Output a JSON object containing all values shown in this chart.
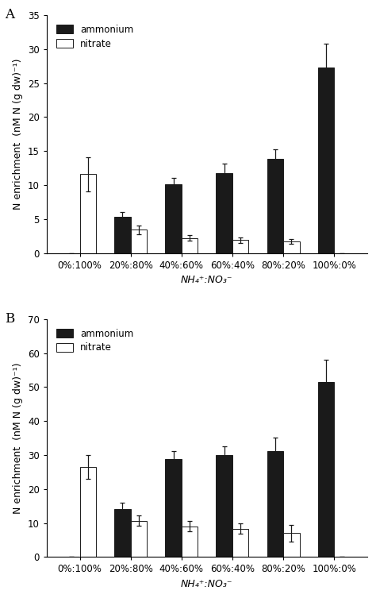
{
  "panel_A": {
    "label": "A",
    "categories": [
      "0%:100%",
      "20%:80%",
      "40%:60%",
      "60%:40%",
      "80%:20%",
      "100%:0%"
    ],
    "ammonium_values": [
      0.0,
      5.3,
      10.1,
      11.7,
      13.8,
      27.3
    ],
    "ammonium_errors": [
      0.0,
      0.7,
      1.0,
      1.5,
      1.5,
      3.5
    ],
    "nitrate_values": [
      11.6,
      3.4,
      2.2,
      1.9,
      1.7,
      0.0
    ],
    "nitrate_errors": [
      2.5,
      0.6,
      0.4,
      0.4,
      0.3,
      0.0
    ],
    "ylim": [
      0,
      35
    ],
    "yticks": [
      0,
      5,
      10,
      15,
      20,
      25,
      30,
      35
    ],
    "ylabel": "N enrichment  (nM N (g dw)⁻¹)"
  },
  "panel_B": {
    "label": "B",
    "categories": [
      "0%:100%",
      "20%:80%",
      "40%:60%",
      "60%:40%",
      "80%:20%",
      "100%:0%"
    ],
    "ammonium_values": [
      0.0,
      14.2,
      28.7,
      30.0,
      31.2,
      51.5
    ],
    "ammonium_errors": [
      0.0,
      1.8,
      2.5,
      2.5,
      4.0,
      6.5
    ],
    "nitrate_values": [
      26.5,
      10.7,
      9.0,
      8.3,
      7.0,
      0.0
    ],
    "nitrate_errors": [
      3.5,
      1.5,
      1.5,
      1.5,
      2.5,
      0.0
    ],
    "ylim": [
      0,
      70
    ],
    "yticks": [
      0,
      10,
      20,
      30,
      40,
      50,
      60,
      70
    ],
    "ylabel": "N enrichment  (nM N (g dw)⁻¹)"
  },
  "xlabel": "NH₄⁺:NO₃⁻",
  "ammonium_color": "#1a1a1a",
  "nitrate_color": "#ffffff",
  "bar_edge_color": "#1a1a1a",
  "bar_width": 0.32,
  "legend_labels": [
    "ammonium",
    "nitrate"
  ],
  "background_color": "#ffffff",
  "fontsize_labels": 9,
  "fontsize_ticks": 8.5,
  "fontsize_panel_label": 12
}
